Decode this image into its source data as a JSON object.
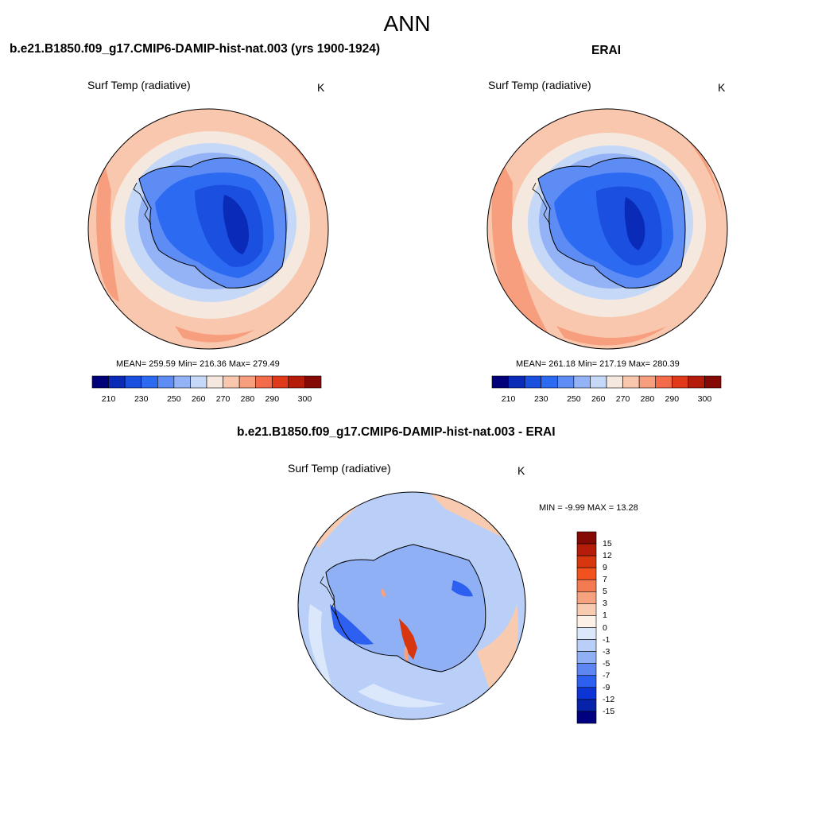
{
  "title": "ANN",
  "panels": [
    {
      "case": "b.e21.B1850.f09_g17.CMIP6-DAMIP-hist-nat.003 (yrs 1900-1924)",
      "variable": "Surf Temp (radiative)",
      "units": "K",
      "stats": {
        "mean": 259.59,
        "min": 216.36,
        "max": 279.49
      },
      "stats_text": "MEAN= 259.59  Min= 216.36  Max= 279.49"
    },
    {
      "case": "ERAI",
      "variable": "Surf Temp (radiative)",
      "units": "K",
      "stats": {
        "mean": 261.18,
        "min": 217.19,
        "max": 280.39
      },
      "stats_text": "MEAN= 261.18  Min= 217.19  Max= 280.39"
    },
    {
      "case": "b.e21.B1850.f09_g17.CMIP6-DAMIP-hist-nat.003 - ERAI",
      "variable": "Surf Temp (radiative)",
      "units": "K",
      "stats": {
        "min": -9.99,
        "max": 13.28
      },
      "stats_text": "MIN =  -9.99 MAX =  13.28"
    }
  ],
  "colorbar_abs": {
    "labels": [
      "210",
      "230",
      "250",
      "260",
      "270",
      "280",
      "290",
      "300"
    ],
    "colors": [
      "#00007a",
      "#0a2ab8",
      "#1a4fe0",
      "#2d6af2",
      "#5c8cf4",
      "#94b3f6",
      "#c6d8f8",
      "#f5e8de",
      "#f8c7ad",
      "#f79e7e",
      "#f36b4a",
      "#e13a1a",
      "#b51d0a",
      "#850a05"
    ]
  },
  "colorbar_diff": {
    "labels": [
      "15",
      "12",
      "9",
      "7",
      "5",
      "3",
      "1",
      "0",
      "-1",
      "-3",
      "-5",
      "-7",
      "-9",
      "-12",
      "-15"
    ],
    "colors": [
      "#850a05",
      "#b51d0a",
      "#d8360f",
      "#f3521f",
      "#f47a52",
      "#f6a27e",
      "#f8cbb0",
      "#fdf0e6",
      "#dbe7fb",
      "#b9cff8",
      "#8fb0f5",
      "#5d86f2",
      "#2d5ff0",
      "#0d35d6",
      "#0522a8",
      "#000080"
    ]
  },
  "chart_data": [
    {
      "type": "heatmap",
      "title": "b.e21.B1850.f09_g17.CMIP6-DAMIP-hist-nat.003 (yrs 1900-1924)",
      "variable": "Surf Temp (radiative)",
      "units": "K",
      "projection": "south polar stereographic",
      "contour_levels": [
        210,
        220,
        230,
        240,
        250,
        255,
        260,
        265,
        270,
        275,
        280,
        285,
        290,
        295,
        300
      ],
      "mean": 259.59,
      "min": 216.36,
      "max": 279.49
    },
    {
      "type": "heatmap",
      "title": "ERAI",
      "variable": "Surf Temp (radiative)",
      "units": "K",
      "projection": "south polar stereographic",
      "contour_levels": [
        210,
        220,
        230,
        240,
        250,
        255,
        260,
        265,
        270,
        275,
        280,
        285,
        290,
        295,
        300
      ],
      "mean": 261.18,
      "min": 217.19,
      "max": 280.39
    },
    {
      "type": "heatmap",
      "title": "b.e21.B1850.f09_g17.CMIP6-DAMIP-hist-nat.003 - ERAI",
      "variable": "Surf Temp (radiative)",
      "units": "K",
      "projection": "south polar stereographic",
      "contour_levels": [
        -15,
        -12,
        -9,
        -7,
        -5,
        -3,
        -1,
        0,
        1,
        3,
        5,
        7,
        9,
        12,
        15
      ],
      "min": -9.99,
      "max": 13.28
    }
  ]
}
